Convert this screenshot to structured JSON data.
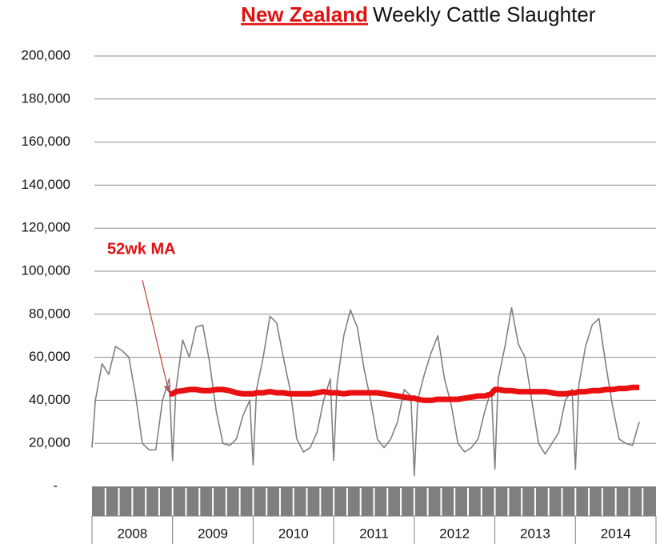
{
  "chart_data": {
    "type": "line",
    "title_highlight": "New Zealand",
    "title": "Weekly Cattle Slaughter",
    "categories": [
      "2008",
      "2009",
      "2010",
      "2011",
      "2012",
      "2013",
      "2014"
    ],
    "xlim": [
      2008,
      2015
    ],
    "ylim": [
      0,
      200000
    ],
    "yticks": [
      {
        "value": 0,
        "label": "-"
      },
      {
        "value": 20000,
        "label": "20,000"
      },
      {
        "value": 40000,
        "label": "40,000"
      },
      {
        "value": 60000,
        "label": "60,000"
      },
      {
        "value": 80000,
        "label": "80,000"
      },
      {
        "value": 100000,
        "label": "100,000"
      },
      {
        "value": 120000,
        "label": "120,000"
      },
      {
        "value": 140000,
        "label": "140,000"
      },
      {
        "value": 160000,
        "label": "160,000"
      },
      {
        "value": 180000,
        "label": "180,000"
      },
      {
        "value": 200000,
        "label": "200,000"
      }
    ],
    "grid": true,
    "x": [
      2008.0,
      2008.042,
      2008.125,
      2008.208,
      2008.292,
      2008.375,
      2008.458,
      2008.542,
      2008.625,
      2008.708,
      2008.792,
      2008.875,
      2008.958,
      2009.0,
      2009.042,
      2009.125,
      2009.208,
      2009.292,
      2009.375,
      2009.458,
      2009.542,
      2009.625,
      2009.708,
      2009.792,
      2009.875,
      2009.958,
      2010.0,
      2010.042,
      2010.125,
      2010.208,
      2010.292,
      2010.375,
      2010.458,
      2010.542,
      2010.625,
      2010.708,
      2010.792,
      2010.875,
      2010.958,
      2011.0,
      2011.042,
      2011.125,
      2011.208,
      2011.292,
      2011.375,
      2011.458,
      2011.542,
      2011.625,
      2011.708,
      2011.792,
      2011.875,
      2011.958,
      2012.0,
      2012.042,
      2012.125,
      2012.208,
      2012.292,
      2012.375,
      2012.458,
      2012.542,
      2012.625,
      2012.708,
      2012.792,
      2012.875,
      2012.958,
      2013.0,
      2013.042,
      2013.125,
      2013.208,
      2013.292,
      2013.375,
      2013.458,
      2013.542,
      2013.625,
      2013.708,
      2013.792,
      2013.875,
      2013.958,
      2014.0,
      2014.042,
      2014.125,
      2014.208,
      2014.292,
      2014.375,
      2014.458,
      2014.542,
      2014.625,
      2014.708,
      2014.792
    ],
    "series": [
      {
        "color": "#808080",
        "width": 1.6,
        "values": [
          18000,
          40000,
          57000,
          52000,
          65000,
          63000,
          60000,
          42000,
          20000,
          17000,
          17000,
          40000,
          50000,
          12000,
          45000,
          68000,
          60000,
          74000,
          75000,
          58000,
          35000,
          20000,
          19000,
          22000,
          33000,
          40000,
          10000,
          45000,
          60000,
          79000,
          76000,
          60000,
          45000,
          22000,
          16000,
          18000,
          25000,
          40000,
          50000,
          12000,
          48000,
          70000,
          82000,
          74000,
          55000,
          40000,
          22000,
          18000,
          22000,
          30000,
          45000,
          42000,
          5000,
          40000,
          52000,
          62000,
          70000,
          50000,
          38000,
          20000,
          16000,
          18000,
          22000,
          35000,
          45000,
          8000,
          50000,
          65000,
          83000,
          66000,
          60000,
          40000,
          20000,
          15000,
          20000,
          25000,
          40000,
          45000,
          8000,
          47000,
          65000,
          75000,
          78000,
          57000,
          38000,
          22000,
          20000,
          19000,
          30000
        ]
      },
      {
        "name": "52wk MA",
        "color": "#e81010",
        "width": 7,
        "values": [
          null,
          null,
          null,
          null,
          null,
          null,
          null,
          null,
          null,
          null,
          null,
          null,
          43000,
          43000,
          44000,
          44500,
          45000,
          45000,
          44500,
          44500,
          45000,
          45000,
          44500,
          43500,
          43000,
          43000,
          43000,
          43500,
          43500,
          44000,
          43500,
          43500,
          43000,
          43000,
          43000,
          43000,
          43500,
          44000,
          43500,
          43500,
          43500,
          43000,
          43500,
          43500,
          43500,
          43500,
          43500,
          43000,
          42500,
          42000,
          41500,
          41000,
          41000,
          40500,
          40000,
          40000,
          40500,
          40500,
          40500,
          40500,
          41000,
          41500,
          42000,
          42000,
          43000,
          45000,
          45000,
          44500,
          44500,
          44000,
          44000,
          44000,
          44000,
          44000,
          43500,
          43000,
          43000,
          43500,
          43500,
          44000,
          44000,
          44500,
          44500,
          45000,
          45000,
          45500,
          45500,
          46000,
          46000
        ]
      }
    ]
  }
}
